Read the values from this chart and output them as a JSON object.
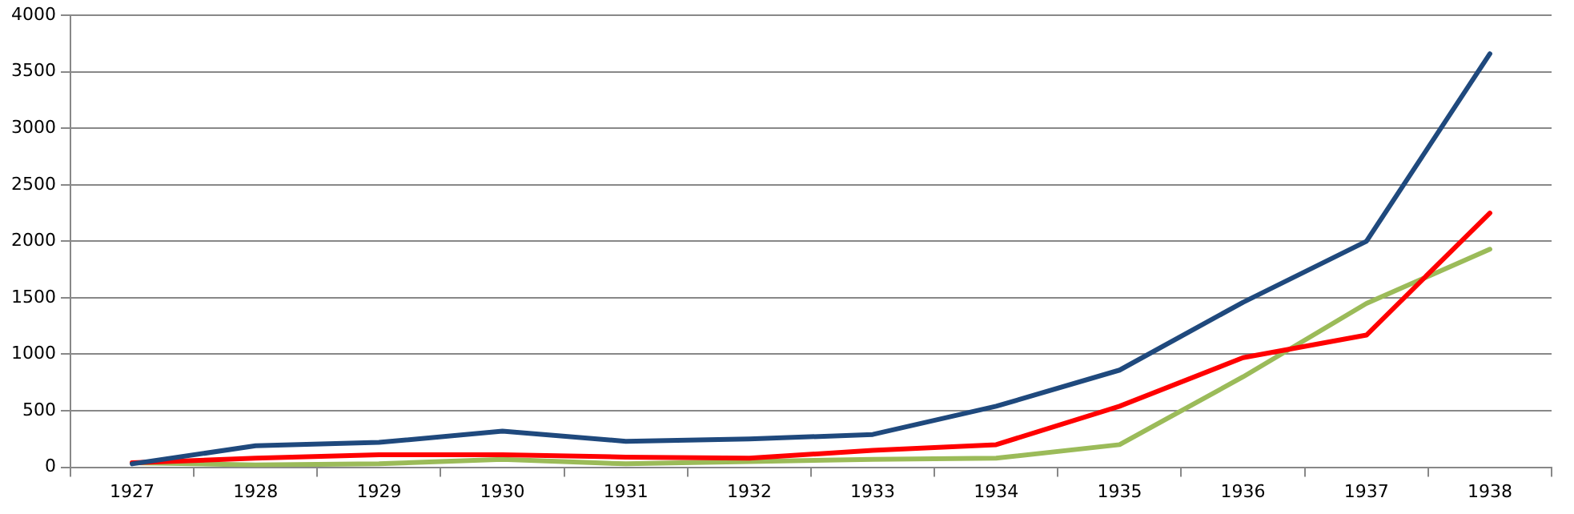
{
  "chart_data": {
    "type": "line",
    "categories": [
      "1927",
      "1928",
      "1929",
      "1930",
      "1931",
      "1932",
      "1933",
      "1934",
      "1935",
      "1936",
      "1937",
      "1938"
    ],
    "series": [
      {
        "color": "#1f497d",
        "values": [
          30,
          190,
          220,
          320,
          230,
          250,
          290,
          540,
          860,
          1460,
          2000,
          3660
        ]
      },
      {
        "color": "#ff0000",
        "values": [
          40,
          80,
          110,
          110,
          90,
          80,
          150,
          200,
          540,
          970,
          1170,
          2250
        ]
      },
      {
        "color": "#9bbb59",
        "values": [
          40,
          20,
          30,
          70,
          30,
          50,
          70,
          80,
          200,
          800,
          1450,
          1930
        ]
      }
    ],
    "ylim": [
      0,
      4000
    ],
    "yticks": [
      0,
      500,
      1000,
      1500,
      2000,
      2500,
      3000,
      3500,
      4000
    ],
    "grid": "y",
    "legend": false,
    "marker": "none",
    "line_style": "solid"
  }
}
